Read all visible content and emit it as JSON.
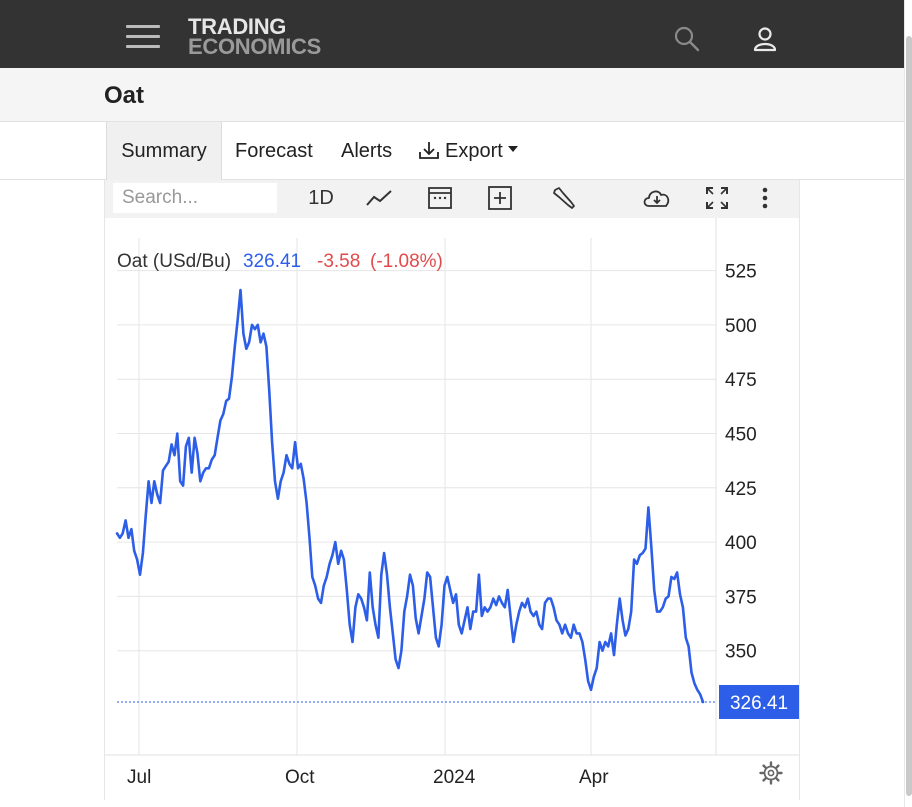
{
  "header": {
    "logo_line1": "TRADING",
    "logo_line2": "ECONOMICS"
  },
  "page": {
    "title": "Oat"
  },
  "tabs": {
    "summary": "Summary",
    "forecast": "Forecast",
    "alerts": "Alerts",
    "export": "Export"
  },
  "toolbar": {
    "search_placeholder": "Search...",
    "interval": "1D"
  },
  "quote": {
    "name": "Oat (USd/Bu)",
    "last": "326.41",
    "change": "-3.58",
    "change_pct": "(-1.08%)"
  },
  "colors": {
    "line": "#2c5ee8",
    "negative": "#e14a4a",
    "topbar": "#333333",
    "price_tag": "#2c5ee8"
  },
  "icons": [
    "menu-icon",
    "search-icon",
    "user-icon",
    "download-icon",
    "line-chart-icon",
    "calendar-icon",
    "add-indicator-icon",
    "wrench-icon",
    "cloud-download-icon",
    "fullscreen-icon",
    "more-vertical-icon",
    "settings-gear-icon"
  ],
  "chart_data": {
    "type": "line",
    "title": "",
    "series": [
      {
        "name": "Oat (USd/Bu)",
        "values": [
          404,
          402,
          404,
          410,
          402,
          406,
          396,
          392,
          385,
          395,
          412,
          428,
          418,
          428,
          422,
          418,
          433,
          435,
          437,
          445,
          440,
          450,
          428,
          426,
          444,
          448,
          432,
          448,
          441,
          428,
          432,
          434,
          434,
          438,
          440,
          448,
          456,
          459,
          465,
          466,
          476,
          490,
          502,
          516,
          496,
          489,
          492,
          500,
          498,
          500,
          492,
          496,
          490,
          470,
          446,
          428,
          420,
          428,
          432,
          440,
          436,
          434,
          446,
          434,
          436,
          429,
          418,
          402,
          384,
          380,
          374,
          372,
          380,
          384,
          390,
          394,
          400,
          390,
          396,
          392,
          378,
          362,
          354,
          370,
          376,
          374,
          370,
          364,
          386,
          370,
          362,
          356,
          385,
          395,
          385,
          370,
          358,
          346,
          342,
          350,
          368,
          375,
          385,
          380,
          365,
          358,
          366,
          374,
          386,
          384,
          370,
          356,
          352,
          362,
          380,
          384,
          378,
          372,
          376,
          362,
          358,
          364,
          370,
          360,
          368,
          368,
          385,
          366,
          370,
          368,
          370,
          374,
          371,
          375,
          372,
          370,
          378,
          366,
          354,
          362,
          368,
          372,
          370,
          374,
          368,
          366,
          368,
          362,
          360,
          372,
          374,
          374,
          370,
          364,
          362,
          358,
          362,
          358,
          356,
          362,
          358,
          358,
          354,
          346,
          336,
          332,
          338,
          342,
          354,
          350,
          354,
          352,
          358,
          348,
          362,
          374,
          364,
          357,
          360,
          368,
          392,
          390,
          394,
          395,
          397,
          416,
          398,
          378,
          368,
          368,
          370,
          374,
          375,
          384,
          383,
          386,
          376,
          370,
          356,
          352,
          340,
          335,
          332,
          330,
          326.41
        ]
      }
    ],
    "x_ticks": [
      "Jul",
      "Oct",
      "2024",
      "Apr"
    ],
    "y_ticks": [
      350,
      375,
      400,
      425,
      450,
      475,
      500,
      525
    ],
    "ylim": [
      302,
      540
    ],
    "last_value_label": "326.41",
    "grid": true
  },
  "settings_label": ""
}
